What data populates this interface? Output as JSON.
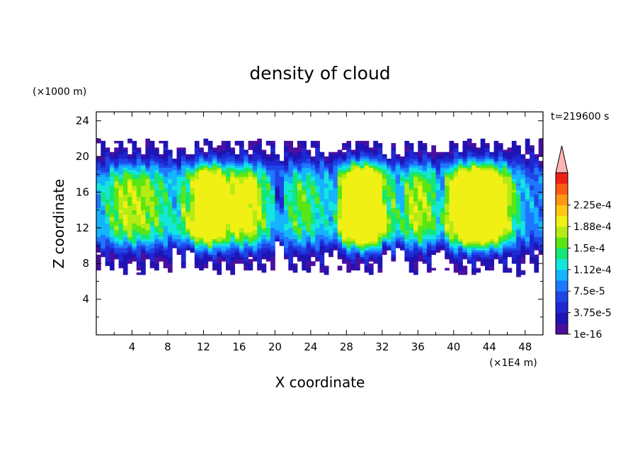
{
  "chart_data": {
    "type": "heatmap",
    "title": "density of cloud",
    "time_label": "t=219600 s",
    "xlabel": "X coordinate",
    "ylabel": "Z coordinate",
    "x_unit": "(×1E4 m)",
    "y_unit": "(×1000 m)",
    "xlim": [
      0,
      50
    ],
    "ylim": [
      0,
      25
    ],
    "x_ticks": [
      "4",
      "8",
      "12",
      "16",
      "20",
      "24",
      "28",
      "32",
      "36",
      "40",
      "44",
      "48"
    ],
    "x_tick_values": [
      4,
      8,
      12,
      16,
      20,
      24,
      28,
      32,
      36,
      40,
      44,
      48
    ],
    "y_ticks": [
      "4",
      "8",
      "12",
      "16",
      "20",
      "24"
    ],
    "y_tick_values": [
      4,
      8,
      12,
      16,
      20,
      24
    ],
    "cloud_base": 7,
    "cloud_top": 22,
    "colorbar": {
      "levels": 13,
      "labels": [
        "1e-16",
        "3.75e-5",
        "7.5e-5",
        "1.12e-4",
        "1.5e-4",
        "1.88e-4",
        "2.25e-4"
      ],
      "colors": [
        "#4b0fa0",
        "#1e14b4",
        "#1e28d2",
        "#1e46e6",
        "#1e78ff",
        "#14b4ff",
        "#14e6dc",
        "#14e678",
        "#5ae614",
        "#b4eb14",
        "#f0f014",
        "#ffc814",
        "#ff9614",
        "#ff5a14",
        "#f01e14"
      ],
      "extend_color": "#ffb4b4"
    }
  }
}
